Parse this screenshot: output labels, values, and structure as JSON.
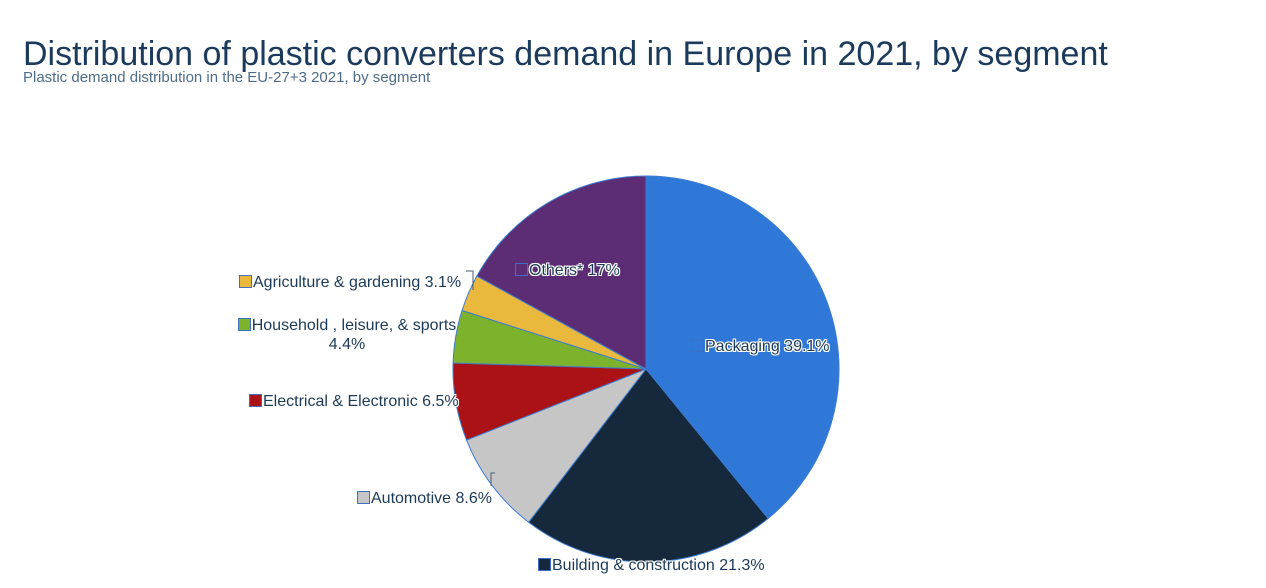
{
  "header": {
    "title": "Distribution of plastic converters demand in Europe in 2021, by segment",
    "subtitle": "Plastic demand distribution in the EU-27+3 2021, by segment"
  },
  "chart_data": {
    "type": "pie",
    "title": "Distribution of plastic converters demand in Europe in 2021, by segment",
    "subtitle": "Plastic demand distribution in the EU-27+3 2021, by segment",
    "unit": "%",
    "start_angle_deg": 0,
    "direction": "clockwise",
    "slices": [
      {
        "label": "Packaging",
        "value": 39.1,
        "color": "#2f78d8",
        "display": "Packaging 39.1%"
      },
      {
        "label": "Building & construction",
        "value": 21.3,
        "color": "#16293c",
        "display": "Building & construction 21.3%"
      },
      {
        "label": "Automotive",
        "value": 8.6,
        "color": "#c6c6c6",
        "display": "Automotive 8.6%"
      },
      {
        "label": "Electrical & Electronic",
        "value": 6.5,
        "color": "#aa1216",
        "display": "Electrical & Electronic 6.5%"
      },
      {
        "label": "Household , leisure, & sports",
        "value": 4.4,
        "color": "#7db32c",
        "display": "Household , leisure, & sports 4.4%"
      },
      {
        "label": "Agriculture & gardening",
        "value": 3.1,
        "color": "#e9b83c",
        "display": "Agriculture & gardening 3.1%"
      },
      {
        "label": "Others*",
        "value": 17.0,
        "color": "#5c2d74",
        "display": "Others* 17%"
      }
    ],
    "labels": {
      "packaging": "Packaging 39.1%",
      "building": "Building & construction 21.3%",
      "automotive": "Automotive 8.6%",
      "electrical": "Electrical & Electronic 6.5%",
      "household_line1": "Household , leisure, & sports",
      "household_line2": "4.4%",
      "agriculture": "Agriculture & gardening 3.1%",
      "others": "Others* 17%"
    },
    "colors": {
      "slice_border": "#3d7cd0",
      "marker_border": "#3f6fc5",
      "label_text": "#1c3a57",
      "connector": "#4a5e70",
      "title_text": "#1b3a5c",
      "subtitle_text": "#4e6c89"
    },
    "legend_position": "data-labels-around-pie",
    "grid": false
  }
}
